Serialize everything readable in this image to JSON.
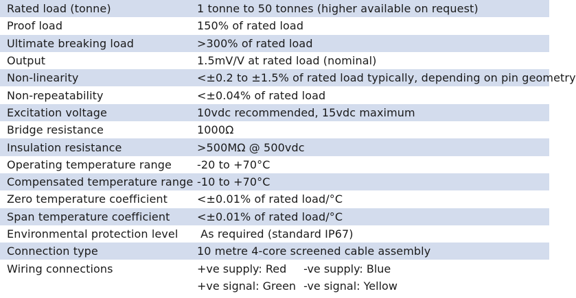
{
  "specs": [
    {
      "label": "Rated load (tonne)",
      "value": "1 tonne to 50 tonnes (higher available on request)"
    },
    {
      "label": "Proof load",
      "value": "150% of rated load"
    },
    {
      "label": "Ultimate breaking load",
      "value": ">300% of rated load"
    },
    {
      "label": "Output",
      "value": "1.5mV/V at rated load (nominal)"
    },
    {
      "label": "Non-linearity",
      "value": "<±0.2 to ±1.5% of rated load typically, depending on pin geometry"
    },
    {
      "label": "Non-repeatability",
      "value": "<±0.04% of rated load"
    },
    {
      "label": "Excitation voltage",
      "value": "10vdc recommended, 15vdc maximum"
    },
    {
      "label": "Bridge resistance",
      "value": "1000Ω"
    },
    {
      "label": "Insulation resistance",
      "value": ">500MΩ @ 500vdc"
    },
    {
      "label": "Operating temperature range",
      "value": "-20 to +70°C"
    },
    {
      "label": "Compensated temperature range",
      "value": "-10 to +70°C"
    },
    {
      "label": "Zero temperature coefficient",
      "value": "<±0.01% of rated load/°C"
    },
    {
      "label": "Span temperature coefficient",
      "value": "<±0.01% of rated load/°C"
    },
    {
      "label": "Environmental protection level",
      "value": " As required (standard IP67)"
    },
    {
      "label": "Connection type",
      "value": "10 metre 4-core screened cable assembly"
    }
  ],
  "wiring": {
    "label": "Wiring connections",
    "supply_positive": "+ve supply: Red",
    "supply_negative": "-ve supply: Blue",
    "signal_positive": "+ve signal: Green",
    "signal_negative": "-ve signal: Yellow"
  },
  "colors": {
    "shaded_row": "#d3dced",
    "plain_row": "#ffffff",
    "text": "#1a1a1a"
  }
}
